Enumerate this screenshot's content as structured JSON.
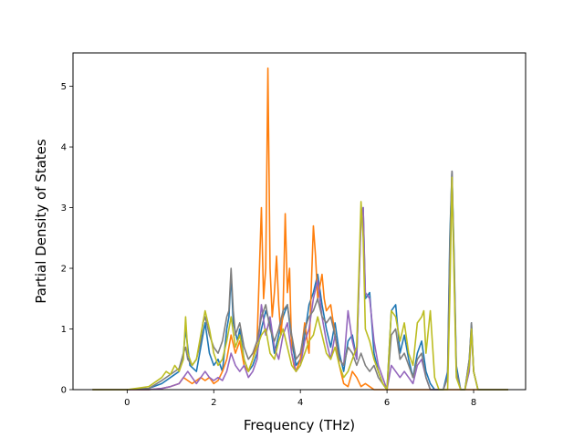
{
  "chart_data": {
    "type": "line",
    "title": "",
    "xlabel": "Frequency (THz)",
    "ylabel": "Partial Density of States",
    "xlim": [
      -1.25,
      9.2
    ],
    "ylim": [
      0,
      5.55
    ],
    "xticks": [
      0,
      2,
      4,
      6,
      8
    ],
    "yticks": [
      0,
      1,
      2,
      3,
      4,
      5
    ],
    "grid": false,
    "legend": "none",
    "series": [
      {
        "color": "#1f77b4",
        "x": [
          -0.8,
          0.0,
          0.5,
          0.8,
          1.0,
          1.2,
          1.3,
          1.35,
          1.45,
          1.6,
          1.75,
          1.8,
          1.9,
          2.0,
          2.1,
          2.2,
          2.3,
          2.35,
          2.4,
          2.45,
          2.55,
          2.6,
          2.7,
          2.8,
          2.9,
          3.0,
          3.1,
          3.2,
          3.3,
          3.4,
          3.5,
          3.6,
          3.7,
          3.8,
          3.9,
          4.0,
          4.1,
          4.2,
          4.3,
          4.4,
          4.5,
          4.6,
          4.7,
          4.8,
          4.9,
          5.0,
          5.1,
          5.2,
          5.3,
          5.4,
          5.45,
          5.5,
          5.6,
          5.7,
          5.8,
          5.9,
          6.0,
          6.1,
          6.2,
          6.3,
          6.4,
          6.5,
          6.6,
          6.7,
          6.8,
          6.9,
          7.0,
          7.1,
          7.2,
          7.3,
          7.4,
          7.45,
          7.5,
          7.55,
          7.6,
          7.7,
          7.8,
          7.9,
          7.95,
          8.0,
          8.1,
          8.8
        ],
        "values": [
          0,
          0,
          0.02,
          0.1,
          0.2,
          0.3,
          0.6,
          1.0,
          0.4,
          0.3,
          0.9,
          1.1,
          0.6,
          0.4,
          0.5,
          0.3,
          1.0,
          1.2,
          1.9,
          1.1,
          0.8,
          1.0,
          0.5,
          0.3,
          0.4,
          0.6,
          1.0,
          1.3,
          1.1,
          0.6,
          0.9,
          1.2,
          1.4,
          0.8,
          0.4,
          0.5,
          0.9,
          1.4,
          1.6,
          1.9,
          1.4,
          1.0,
          0.7,
          1.1,
          0.6,
          0.3,
          0.8,
          0.9,
          0.5,
          2.9,
          3.0,
          1.5,
          1.6,
          0.6,
          0.3,
          0.1,
          0.0,
          1.3,
          1.4,
          0.6,
          0.9,
          0.5,
          0.2,
          0.6,
          0.8,
          0.3,
          0.1,
          0.0,
          0.0,
          0.0,
          0.3,
          2.5,
          3.6,
          2.2,
          0.4,
          0.0,
          0.0,
          0.5,
          1.1,
          0.3,
          0.0,
          0
        ]
      },
      {
        "color": "#ff7f0e",
        "x": [
          -0.8,
          0.0,
          0.5,
          0.8,
          1.0,
          1.2,
          1.3,
          1.4,
          1.5,
          1.7,
          1.8,
          1.9,
          2.0,
          2.1,
          2.2,
          2.3,
          2.4,
          2.5,
          2.6,
          2.7,
          2.8,
          2.9,
          3.0,
          3.1,
          3.15,
          3.2,
          3.25,
          3.3,
          3.35,
          3.4,
          3.45,
          3.5,
          3.55,
          3.6,
          3.65,
          3.7,
          3.75,
          3.8,
          3.85,
          3.9,
          4.0,
          4.1,
          4.2,
          4.3,
          4.35,
          4.4,
          4.5,
          4.55,
          4.6,
          4.7,
          4.8,
          4.9,
          5.0,
          5.1,
          5.2,
          5.3,
          5.4,
          5.5,
          5.6,
          5.7,
          5.8,
          5.9,
          6.0,
          6.1,
          6.2,
          6.3,
          6.4,
          6.5,
          6.6,
          6.7,
          6.8,
          6.9,
          7.0,
          7.1,
          7.2,
          7.3,
          7.4,
          7.45,
          7.5,
          7.55,
          7.6,
          7.7,
          7.8,
          7.9,
          7.95,
          8.0,
          8.1,
          8.8
        ],
        "values": [
          0,
          0,
          0.0,
          0.02,
          0.05,
          0.1,
          0.2,
          0.15,
          0.1,
          0.2,
          0.15,
          0.2,
          0.1,
          0.15,
          0.3,
          0.5,
          0.9,
          0.6,
          0.8,
          0.4,
          0.3,
          0.5,
          0.8,
          3.0,
          1.5,
          2.0,
          5.3,
          2.0,
          1.2,
          1.6,
          2.2,
          1.4,
          0.9,
          1.3,
          2.9,
          1.6,
          2.0,
          0.6,
          0.4,
          0.3,
          0.5,
          1.1,
          0.6,
          2.7,
          2.2,
          1.5,
          1.9,
          1.5,
          1.3,
          1.4,
          0.9,
          0.4,
          0.1,
          0.05,
          0.3,
          0.2,
          0.05,
          0.1,
          0.05,
          0.0,
          0.0,
          0.0,
          0.0,
          0.0,
          0.0,
          0.0,
          0.0,
          0.0,
          0.0,
          0.0,
          0.0,
          0.0,
          0.0,
          0.0,
          0.0,
          0.0,
          0.0,
          0.0,
          0.0,
          0.0,
          0.0,
          0.0,
          0.0,
          0.0,
          0.0,
          0.0,
          0.0,
          0
        ]
      },
      {
        "color": "#9467bd",
        "x": [
          -0.8,
          0.0,
          0.5,
          0.8,
          1.0,
          1.2,
          1.3,
          1.4,
          1.5,
          1.6,
          1.7,
          1.8,
          1.9,
          2.0,
          2.1,
          2.2,
          2.3,
          2.4,
          2.5,
          2.6,
          2.7,
          2.8,
          2.9,
          3.0,
          3.1,
          3.2,
          3.3,
          3.4,
          3.5,
          3.6,
          3.7,
          3.8,
          3.9,
          4.0,
          4.1,
          4.2,
          4.3,
          4.4,
          4.5,
          4.6,
          4.7,
          4.8,
          4.9,
          5.0,
          5.1,
          5.2,
          5.3,
          5.4,
          5.45,
          5.5,
          5.6,
          5.7,
          5.8,
          5.9,
          6.0,
          6.1,
          6.2,
          6.3,
          6.4,
          6.5,
          6.6,
          6.7,
          6.8,
          6.9,
          7.0,
          7.1,
          7.2,
          7.3,
          7.4,
          7.45,
          7.5,
          7.55,
          7.6,
          7.7,
          7.8,
          7.9,
          7.95,
          8.0,
          8.1,
          8.8
        ],
        "values": [
          0,
          0,
          0.0,
          0.02,
          0.05,
          0.1,
          0.2,
          0.3,
          0.2,
          0.1,
          0.2,
          0.3,
          0.2,
          0.15,
          0.2,
          0.15,
          0.3,
          0.6,
          0.4,
          0.3,
          0.4,
          0.2,
          0.3,
          0.5,
          1.4,
          0.9,
          1.2,
          0.7,
          0.5,
          0.9,
          1.1,
          0.6,
          0.3,
          0.4,
          0.8,
          1.0,
          1.5,
          1.8,
          1.2,
          0.8,
          0.5,
          0.9,
          0.5,
          0.4,
          1.3,
          0.8,
          0.5,
          2.8,
          3.0,
          1.6,
          1.5,
          0.8,
          0.4,
          0.2,
          0.0,
          0.4,
          0.3,
          0.2,
          0.3,
          0.2,
          0.1,
          0.4,
          0.5,
          0.2,
          0.0,
          0.0,
          0.0,
          0.0,
          0.2,
          2.0,
          3.6,
          2.0,
          0.3,
          0.0,
          0.0,
          0.3,
          1.0,
          0.3,
          0.0,
          0
        ]
      },
      {
        "color": "#7f7f7f",
        "x": [
          -0.8,
          0.0,
          0.5,
          0.8,
          1.0,
          1.2,
          1.3,
          1.35,
          1.4,
          1.5,
          1.6,
          1.7,
          1.75,
          1.8,
          1.9,
          2.0,
          2.1,
          2.2,
          2.3,
          2.35,
          2.4,
          2.45,
          2.5,
          2.6,
          2.7,
          2.8,
          2.9,
          3.0,
          3.1,
          3.2,
          3.3,
          3.4,
          3.5,
          3.6,
          3.7,
          3.8,
          3.9,
          4.0,
          4.1,
          4.2,
          4.3,
          4.4,
          4.5,
          4.6,
          4.7,
          4.8,
          4.9,
          5.0,
          5.1,
          5.2,
          5.3,
          5.4,
          5.5,
          5.6,
          5.7,
          5.8,
          5.9,
          6.0,
          6.1,
          6.2,
          6.3,
          6.4,
          6.5,
          6.6,
          6.7,
          6.8,
          6.9,
          7.0,
          7.1,
          7.2,
          7.3,
          7.4,
          7.45,
          7.5,
          7.55,
          7.6,
          7.7,
          7.8,
          7.9,
          7.95,
          8.0,
          8.1,
          8.8
        ],
        "values": [
          0,
          0,
          0.02,
          0.15,
          0.25,
          0.35,
          0.6,
          0.7,
          0.5,
          0.4,
          0.5,
          0.8,
          1.1,
          1.2,
          0.9,
          0.7,
          0.6,
          0.8,
          1.2,
          1.3,
          2.0,
          1.3,
          0.9,
          1.1,
          0.7,
          0.5,
          0.6,
          0.8,
          1.2,
          1.4,
          1.0,
          0.8,
          1.0,
          1.3,
          1.4,
          0.9,
          0.5,
          0.6,
          1.0,
          1.2,
          1.3,
          1.5,
          1.2,
          1.1,
          1.2,
          0.9,
          0.5,
          0.4,
          0.7,
          0.6,
          0.4,
          0.6,
          0.4,
          0.3,
          0.4,
          0.2,
          0.1,
          0.0,
          0.9,
          1.0,
          0.5,
          0.6,
          0.4,
          0.2,
          0.5,
          0.6,
          0.2,
          0.0,
          0.0,
          0.0,
          0.0,
          0.2,
          2.3,
          3.6,
          2.0,
          0.3,
          0.0,
          0.0,
          0.5,
          1.1,
          0.3,
          0.0,
          0
        ]
      },
      {
        "color": "#bcbd22",
        "x": [
          -0.8,
          0.0,
          0.5,
          0.8,
          0.9,
          1.0,
          1.1,
          1.2,
          1.3,
          1.35,
          1.4,
          1.5,
          1.6,
          1.7,
          1.8,
          1.9,
          2.0,
          2.1,
          2.2,
          2.3,
          2.4,
          2.5,
          2.6,
          2.7,
          2.8,
          2.9,
          3.0,
          3.1,
          3.2,
          3.3,
          3.4,
          3.5,
          3.6,
          3.7,
          3.8,
          3.9,
          4.0,
          4.1,
          4.2,
          4.3,
          4.4,
          4.5,
          4.6,
          4.7,
          4.8,
          4.9,
          5.0,
          5.1,
          5.2,
          5.3,
          5.4,
          5.45,
          5.5,
          5.6,
          5.7,
          5.8,
          5.9,
          6.0,
          6.1,
          6.2,
          6.3,
          6.4,
          6.5,
          6.6,
          6.7,
          6.8,
          6.85,
          6.9,
          7.0,
          7.1,
          7.2,
          7.3,
          7.4,
          7.45,
          7.5,
          7.55,
          7.6,
          7.7,
          7.8,
          7.9,
          7.95,
          8.0,
          8.1,
          8.8
        ],
        "values": [
          0,
          0,
          0.05,
          0.2,
          0.3,
          0.25,
          0.4,
          0.3,
          0.5,
          1.2,
          0.6,
          0.4,
          0.5,
          0.9,
          1.3,
          1.0,
          0.6,
          0.4,
          0.5,
          0.8,
          1.2,
          0.7,
          0.9,
          0.5,
          0.3,
          0.5,
          0.7,
          0.9,
          1.0,
          0.6,
          0.5,
          0.8,
          1.0,
          0.7,
          0.4,
          0.3,
          0.4,
          0.6,
          0.8,
          0.9,
          1.2,
          0.9,
          0.6,
          0.5,
          0.7,
          0.4,
          0.2,
          0.3,
          0.5,
          0.7,
          3.1,
          2.5,
          1.0,
          0.8,
          0.5,
          0.3,
          0.1,
          0.0,
          1.3,
          1.2,
          0.8,
          1.1,
          0.6,
          0.4,
          1.1,
          1.2,
          1.3,
          0.6,
          1.3,
          0.2,
          0.0,
          0.0,
          0.0,
          1.5,
          3.5,
          1.8,
          0.2,
          0.0,
          0.0,
          0.4,
          1.0,
          0.3,
          0.0,
          0
        ]
      }
    ]
  }
}
